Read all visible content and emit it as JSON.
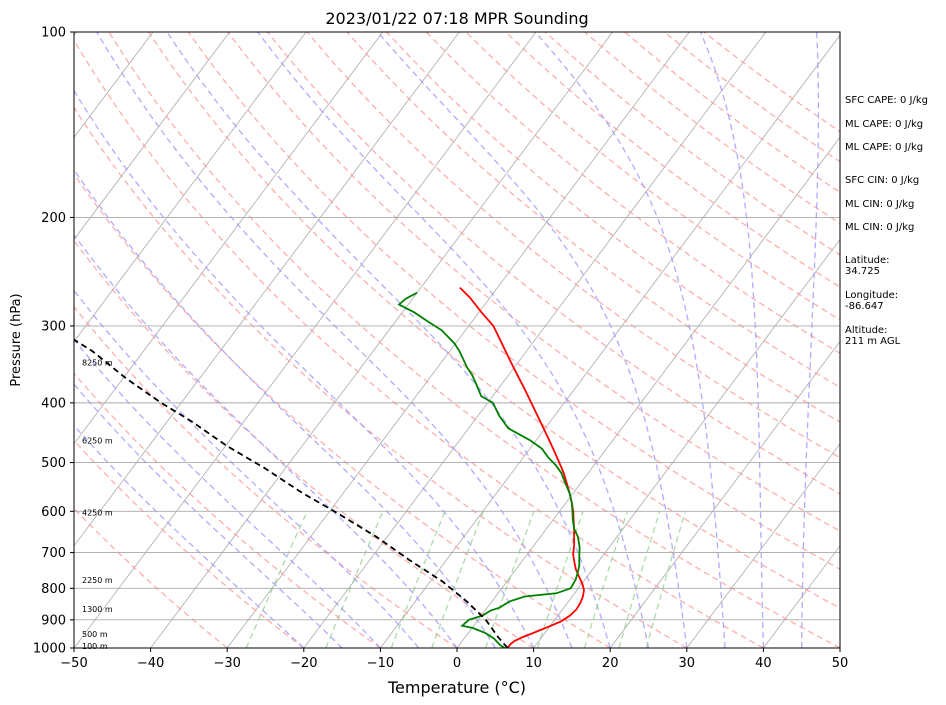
{
  "chart_data": {
    "type": "line",
    "title": "2023/01/22 07:18 MPR Sounding",
    "xlabel": "Temperature (°C)",
    "ylabel": "Pressure (hPa)",
    "xlim": [
      -50,
      50
    ],
    "ylim": [
      1000,
      100
    ],
    "y_scale": "log",
    "skew": true,
    "grid": true,
    "x_ticks": [
      "−50",
      "−40",
      "−30",
      "−20",
      "−10",
      "0",
      "10",
      "20",
      "30",
      "40",
      "50"
    ],
    "y_ticks": [
      100,
      200,
      300,
      400,
      500,
      600,
      700,
      800,
      900,
      1000
    ],
    "height_labels": [
      {
        "label": "100 m",
        "p": 996
      },
      {
        "label": "500 m",
        "p": 952
      },
      {
        "label": "1300 m",
        "p": 868
      },
      {
        "label": "2250 m",
        "p": 778
      },
      {
        "label": "4250 m",
        "p": 605
      },
      {
        "label": "6250 m",
        "p": 462
      },
      {
        "label": "8250 m",
        "p": 345
      }
    ],
    "series": [
      {
        "kind": "temperature",
        "color": "#ff0000",
        "points": [
          [
            6.6,
            1000
          ],
          [
            6.6,
            985
          ],
          [
            6.8,
            975
          ],
          [
            7.5,
            960
          ],
          [
            8.5,
            945
          ],
          [
            9.8,
            925
          ],
          [
            11.0,
            905
          ],
          [
            11.6,
            885
          ],
          [
            11.8,
            865
          ],
          [
            11.7,
            845
          ],
          [
            11.4,
            825
          ],
          [
            10.9,
            805
          ],
          [
            10.0,
            785
          ],
          [
            8.9,
            765
          ],
          [
            7.8,
            745
          ],
          [
            6.9,
            725
          ],
          [
            6.0,
            705
          ],
          [
            5.2,
            680
          ],
          [
            4.4,
            660
          ],
          [
            3.6,
            640
          ],
          [
            2.7,
            620
          ],
          [
            1.8,
            600
          ],
          [
            0.7,
            580
          ],
          [
            -0.5,
            560
          ],
          [
            -1.8,
            540
          ],
          [
            -3.2,
            520
          ],
          [
            -4.8,
            500
          ],
          [
            -6.5,
            480
          ],
          [
            -8.3,
            460
          ],
          [
            -10.2,
            440
          ],
          [
            -12.2,
            420
          ],
          [
            -14.3,
            400
          ],
          [
            -16.5,
            380
          ],
          [
            -18.9,
            360
          ],
          [
            -21.4,
            340
          ],
          [
            -24.0,
            320
          ],
          [
            -26.8,
            300
          ],
          [
            -29.7,
            285
          ],
          [
            -32.6,
            270
          ],
          [
            -34.9,
            260
          ]
        ]
      },
      {
        "kind": "dewpoint",
        "color": "#008000",
        "points": [
          [
            6.2,
            1000
          ],
          [
            5.4,
            990
          ],
          [
            4.5,
            975
          ],
          [
            3.9,
            965
          ],
          [
            2.2,
            945
          ],
          [
            0.1,
            928
          ],
          [
            -1.5,
            920
          ],
          [
            -1.2,
            900
          ],
          [
            0.2,
            885
          ],
          [
            0.7,
            870
          ],
          [
            1.6,
            860
          ],
          [
            2.3,
            840
          ],
          [
            3.8,
            825
          ],
          [
            7.6,
            815
          ],
          [
            9.0,
            800
          ],
          [
            8.8,
            775
          ],
          [
            8.4,
            755
          ],
          [
            7.9,
            735
          ],
          [
            7.0,
            710
          ],
          [
            6.1,
            685
          ],
          [
            4.9,
            660
          ],
          [
            3.6,
            640
          ],
          [
            2.6,
            620
          ],
          [
            1.7,
            600
          ],
          [
            0.7,
            580
          ],
          [
            -0.5,
            560
          ],
          [
            -2.0,
            540
          ],
          [
            -3.5,
            520
          ],
          [
            -5.0,
            505
          ],
          [
            -6.8,
            490
          ],
          [
            -8.4,
            475
          ],
          [
            -10.8,
            460
          ],
          [
            -14.8,
            440
          ],
          [
            -17.2,
            420
          ],
          [
            -19.3,
            400
          ],
          [
            -21.5,
            390
          ],
          [
            -23.1,
            375
          ],
          [
            -24.8,
            360
          ],
          [
            -26.2,
            350
          ],
          [
            -28.7,
            330
          ],
          [
            -30.2,
            320
          ],
          [
            -33.1,
            305
          ],
          [
            -35.8,
            295
          ],
          [
            -38.5,
            285
          ],
          [
            -41.2,
            277
          ],
          [
            -40.9,
            271
          ],
          [
            -40.0,
            265
          ]
        ]
      },
      {
        "kind": "parcel",
        "color": "#000000",
        "points": [
          [
            6.6,
            1000
          ],
          [
            4.3,
            960
          ],
          [
            1.0,
            900
          ],
          [
            -3.3,
            840
          ],
          [
            -8.4,
            780
          ],
          [
            -14.8,
            720
          ],
          [
            -21.4,
            660
          ],
          [
            -29.4,
            600
          ],
          [
            -35.4,
            560
          ],
          [
            -42.8,
            510
          ],
          [
            -49.8,
            470
          ],
          [
            -56.6,
            430
          ],
          [
            -62.6,
            400
          ],
          [
            -69.6,
            365
          ],
          [
            -76.6,
            330
          ],
          [
            -84.4,
            300
          ],
          [
            -88.9,
            284
          ],
          [
            -93.0,
            270
          ]
        ]
      }
    ]
  },
  "side_panel": {
    "sfc_cape": "SFC CAPE: 0 J/kg",
    "ml_cape_1": "ML CAPE: 0 J/kg",
    "ml_cape_2": "ML CAPE: 0 J/kg",
    "sfc_cin": "SFC CIN: 0 J/kg",
    "ml_cin_1": "ML CIN: 0 J/kg",
    "ml_cin_2": "ML CIN: 0 J/kg",
    "latitude": "Latitude:\n34.725",
    "longitude": "Longitude:\n-86.647",
    "altitude": "Altitude:\n211 m AGL"
  },
  "colors": {
    "dry_adiabat": "#ff9999",
    "moist_adiabat": "#9999ff",
    "mixing_ratio": "#88cc88",
    "isotherm": "#aaaaaa"
  }
}
